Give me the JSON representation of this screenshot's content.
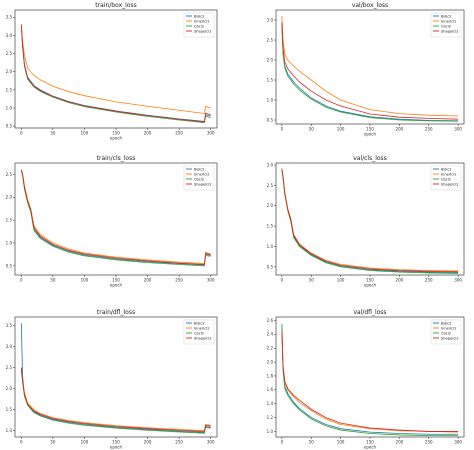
{
  "colors": {
    "Bisic2": "#1f77b4",
    "Innerlci2": "#ff7f0e",
    "Cbcl2": "#2ca02c",
    "Shapelci2": "#d62728"
  },
  "chart_data": [
    {
      "type": "line",
      "title": "train/box_loss",
      "xlabel": "epoch",
      "xlim": [
        -10,
        310
      ],
      "ylim": [
        0.45,
        3.7
      ],
      "xticks": [
        0,
        50,
        100,
        150,
        200,
        250,
        300
      ],
      "yticks": [
        0.5,
        1.0,
        1.5,
        2.0,
        2.5,
        3.0,
        3.5
      ],
      "ytick_labels": [
        "0.5",
        "1.0",
        "1.5",
        "2.0",
        "2.5",
        "3.0",
        "3.5"
      ],
      "legend": "top-right",
      "series": [
        {
          "name": "Bisic2",
          "x": [
            0,
            2,
            5,
            10,
            20,
            30,
            50,
            75,
            100,
            150,
            200,
            250,
            290,
            292,
            295,
            300
          ],
          "y": [
            3.3,
            2.7,
            2.2,
            1.85,
            1.62,
            1.5,
            1.33,
            1.18,
            1.07,
            0.92,
            0.8,
            0.7,
            0.63,
            0.82,
            0.8,
            0.78
          ]
        },
        {
          "name": "Innerlci2",
          "x": [
            0,
            2,
            5,
            10,
            20,
            30,
            50,
            75,
            100,
            150,
            200,
            250,
            290,
            292,
            295,
            300
          ],
          "y": [
            3.3,
            2.85,
            2.45,
            2.1,
            1.9,
            1.78,
            1.6,
            1.45,
            1.34,
            1.17,
            1.05,
            0.94,
            0.85,
            1.05,
            1.03,
            1.0
          ]
        },
        {
          "name": "Cbcl2",
          "x": [
            0,
            2,
            5,
            10,
            20,
            30,
            50,
            75,
            100,
            150,
            200,
            250,
            290,
            292,
            295,
            300
          ],
          "y": [
            3.3,
            2.7,
            2.15,
            1.8,
            1.58,
            1.46,
            1.3,
            1.15,
            1.04,
            0.89,
            0.77,
            0.67,
            0.6,
            0.78,
            0.76,
            0.74
          ]
        },
        {
          "name": "Shapelci2",
          "x": [
            0,
            2,
            5,
            10,
            20,
            30,
            50,
            75,
            100,
            150,
            200,
            250,
            290,
            292,
            295,
            300
          ],
          "y": [
            3.3,
            2.72,
            2.18,
            1.83,
            1.6,
            1.48,
            1.32,
            1.17,
            1.06,
            0.91,
            0.79,
            0.69,
            0.62,
            0.86,
            0.84,
            0.82
          ]
        }
      ]
    },
    {
      "type": "line",
      "title": "val/box_loss",
      "xlabel": "epoch",
      "xlim": [
        -10,
        310
      ],
      "ylim": [
        0.4,
        3.25
      ],
      "xticks": [
        0,
        50,
        100,
        150,
        200,
        250,
        300
      ],
      "yticks": [
        0.5,
        1.0,
        1.5,
        2.0,
        2.5,
        3.0
      ],
      "ytick_labels": [
        "0.5",
        "1.0",
        "1.5",
        "2.0",
        "2.5",
        "3.0"
      ],
      "legend": "top-right",
      "series": [
        {
          "name": "Bisic2",
          "x": [
            0,
            2,
            5,
            10,
            20,
            30,
            50,
            75,
            100,
            150,
            200,
            250,
            300
          ],
          "y": [
            2.9,
            2.2,
            1.85,
            1.65,
            1.45,
            1.3,
            1.05,
            0.85,
            0.72,
            0.58,
            0.52,
            0.49,
            0.48
          ]
        },
        {
          "name": "Innerlci2",
          "x": [
            0,
            2,
            5,
            10,
            20,
            30,
            50,
            75,
            100,
            150,
            200,
            250,
            300
          ],
          "y": [
            3.1,
            2.5,
            2.15,
            2.0,
            1.85,
            1.72,
            1.5,
            1.22,
            1.0,
            0.76,
            0.66,
            0.62,
            0.6
          ]
        },
        {
          "name": "Cbcl2",
          "x": [
            0,
            2,
            5,
            10,
            20,
            30,
            50,
            75,
            100,
            150,
            200,
            250,
            300
          ],
          "y": [
            2.85,
            2.15,
            1.8,
            1.6,
            1.4,
            1.25,
            1.02,
            0.82,
            0.7,
            0.56,
            0.5,
            0.48,
            0.47
          ]
        },
        {
          "name": "Shapelci2",
          "x": [
            0,
            2,
            5,
            10,
            20,
            30,
            50,
            75,
            100,
            150,
            200,
            250,
            300
          ],
          "y": [
            2.95,
            2.3,
            1.95,
            1.78,
            1.6,
            1.45,
            1.22,
            1.0,
            0.85,
            0.65,
            0.57,
            0.54,
            0.52
          ]
        }
      ]
    },
    {
      "type": "line",
      "title": "train/cls_loss",
      "xlabel": "epoch",
      "xlim": [
        -10,
        310
      ],
      "ylim": [
        0.3,
        2.75
      ],
      "xticks": [
        0,
        50,
        100,
        150,
        200,
        250,
        300
      ],
      "yticks": [
        0.5,
        1.0,
        1.5,
        2.0,
        2.5
      ],
      "ytick_labels": [
        "0.5",
        "1.0",
        "1.5",
        "2.0",
        "2.5"
      ],
      "legend": "top-right",
      "series": [
        {
          "name": "Bisic2",
          "x": [
            0,
            2,
            5,
            10,
            15,
            20,
            30,
            50,
            75,
            100,
            150,
            200,
            250,
            290,
            292,
            295,
            300
          ],
          "y": [
            2.6,
            2.5,
            2.2,
            1.9,
            1.7,
            1.3,
            1.12,
            0.95,
            0.82,
            0.74,
            0.65,
            0.59,
            0.55,
            0.52,
            0.76,
            0.75,
            0.73
          ]
        },
        {
          "name": "Innerlci2",
          "x": [
            0,
            2,
            5,
            10,
            15,
            20,
            30,
            50,
            75,
            100,
            150,
            200,
            250,
            290,
            292,
            295,
            300
          ],
          "y": [
            2.6,
            2.52,
            2.25,
            1.95,
            1.75,
            1.38,
            1.18,
            1.0,
            0.87,
            0.78,
            0.69,
            0.63,
            0.58,
            0.55,
            0.8,
            0.78,
            0.76
          ]
        },
        {
          "name": "Cbcl2",
          "x": [
            0,
            2,
            5,
            10,
            15,
            20,
            30,
            50,
            75,
            100,
            150,
            200,
            250,
            290,
            292,
            295,
            300
          ],
          "y": [
            2.6,
            2.48,
            2.18,
            1.88,
            1.68,
            1.28,
            1.1,
            0.93,
            0.8,
            0.72,
            0.63,
            0.57,
            0.53,
            0.5,
            0.74,
            0.72,
            0.71
          ]
        },
        {
          "name": "Shapelci2",
          "x": [
            0,
            2,
            5,
            10,
            15,
            20,
            30,
            50,
            75,
            100,
            150,
            200,
            250,
            290,
            292,
            295,
            300
          ],
          "y": [
            2.6,
            2.5,
            2.22,
            1.92,
            1.72,
            1.34,
            1.15,
            0.97,
            0.84,
            0.76,
            0.67,
            0.61,
            0.56,
            0.53,
            0.78,
            0.76,
            0.74
          ]
        }
      ]
    },
    {
      "type": "line",
      "title": "val/cls_loss",
      "xlabel": "epoch",
      "xlim": [
        -10,
        310
      ],
      "ylim": [
        0.3,
        3.05
      ],
      "xticks": [
        0,
        50,
        100,
        150,
        200,
        250,
        300
      ],
      "yticks": [
        0.5,
        1.0,
        1.5,
        2.0,
        2.5,
        3.0
      ],
      "ytick_labels": [
        "0.5",
        "1.0",
        "1.5",
        "2.0",
        "2.5",
        "3.0"
      ],
      "legend": "top-right",
      "series": [
        {
          "name": "Bisic2",
          "x": [
            0,
            2,
            5,
            10,
            15,
            20,
            30,
            50,
            75,
            100,
            150,
            200,
            250,
            300
          ],
          "y": [
            2.9,
            2.7,
            2.3,
            1.9,
            1.65,
            1.25,
            1.02,
            0.8,
            0.62,
            0.52,
            0.43,
            0.39,
            0.37,
            0.36
          ]
        },
        {
          "name": "Innerlci2",
          "x": [
            0,
            2,
            5,
            10,
            15,
            20,
            30,
            50,
            75,
            100,
            150,
            200,
            250,
            300
          ],
          "y": [
            2.92,
            2.72,
            2.33,
            1.93,
            1.7,
            1.3,
            1.06,
            0.84,
            0.66,
            0.56,
            0.47,
            0.43,
            0.41,
            0.4
          ]
        },
        {
          "name": "Cbcl2",
          "x": [
            0,
            2,
            5,
            10,
            15,
            20,
            30,
            50,
            75,
            100,
            150,
            200,
            250,
            300
          ],
          "y": [
            2.88,
            2.68,
            2.28,
            1.88,
            1.63,
            1.22,
            1.0,
            0.78,
            0.6,
            0.5,
            0.41,
            0.37,
            0.35,
            0.34
          ]
        },
        {
          "name": "Shapelci2",
          "x": [
            0,
            2,
            5,
            10,
            15,
            20,
            30,
            50,
            75,
            100,
            150,
            200,
            250,
            300
          ],
          "y": [
            2.9,
            2.71,
            2.31,
            1.91,
            1.68,
            1.28,
            1.04,
            0.82,
            0.64,
            0.54,
            0.45,
            0.41,
            0.39,
            0.38
          ]
        }
      ]
    },
    {
      "type": "line",
      "title": "train/dfl_loss",
      "xlabel": "epoch",
      "xlim": [
        -10,
        310
      ],
      "ylim": [
        0.85,
        3.7
      ],
      "xticks": [
        0,
        50,
        100,
        150,
        200,
        250,
        300
      ],
      "yticks": [
        1.0,
        1.5,
        2.0,
        2.5,
        3.0,
        3.5
      ],
      "ytick_labels": [
        "1.0",
        "1.5",
        "2.0",
        "2.5",
        "3.0",
        "3.5"
      ],
      "legend": "top-right",
      "series": [
        {
          "name": "Bisic2",
          "x": [
            0,
            2,
            5,
            10,
            20,
            30,
            50,
            75,
            100,
            150,
            200,
            250,
            290,
            292,
            295,
            300
          ],
          "y": [
            3.55,
            2.3,
            1.85,
            1.62,
            1.45,
            1.37,
            1.27,
            1.2,
            1.15,
            1.08,
            1.03,
            0.99,
            0.96,
            1.1,
            1.09,
            1.08
          ]
        },
        {
          "name": "Innerlci2",
          "x": [
            0,
            2,
            5,
            10,
            20,
            30,
            50,
            75,
            100,
            150,
            200,
            250,
            290,
            292,
            295,
            300
          ],
          "y": [
            2.5,
            2.2,
            1.9,
            1.66,
            1.5,
            1.41,
            1.31,
            1.24,
            1.19,
            1.12,
            1.07,
            1.03,
            1.0,
            1.15,
            1.14,
            1.13
          ]
        },
        {
          "name": "Cbcl2",
          "x": [
            0,
            2,
            5,
            10,
            20,
            30,
            50,
            75,
            100,
            150,
            200,
            250,
            290,
            292,
            295,
            300
          ],
          "y": [
            2.45,
            2.15,
            1.82,
            1.6,
            1.43,
            1.35,
            1.25,
            1.18,
            1.13,
            1.06,
            1.01,
            0.97,
            0.94,
            1.08,
            1.07,
            1.06
          ]
        },
        {
          "name": "Shapelci2",
          "x": [
            0,
            2,
            5,
            10,
            20,
            30,
            50,
            75,
            100,
            150,
            200,
            250,
            290,
            292,
            295,
            300
          ],
          "y": [
            2.5,
            2.18,
            1.86,
            1.63,
            1.47,
            1.39,
            1.29,
            1.22,
            1.17,
            1.1,
            1.05,
            1.01,
            0.98,
            1.13,
            1.12,
            1.11
          ]
        }
      ]
    },
    {
      "type": "line",
      "title": "val/dfl_loss",
      "xlabel": "epoch",
      "xlim": [
        -10,
        310
      ],
      "ylim": [
        0.92,
        2.65
      ],
      "xticks": [
        0,
        50,
        100,
        150,
        200,
        250,
        300
      ],
      "yticks": [
        1.0,
        1.2,
        1.4,
        1.6,
        1.8,
        2.0,
        2.2,
        2.4,
        2.6
      ],
      "ytick_labels": [
        "1.0",
        "1.2",
        "1.4",
        "1.6",
        "1.8",
        "2.0",
        "2.2",
        "2.4",
        "2.6"
      ],
      "legend": "top-right",
      "series": [
        {
          "name": "Bisic2",
          "x": [
            0,
            2,
            5,
            10,
            20,
            30,
            50,
            75,
            100,
            150,
            200,
            250,
            300
          ],
          "y": [
            2.55,
            1.9,
            1.65,
            1.55,
            1.42,
            1.33,
            1.2,
            1.1,
            1.04,
            0.99,
            0.97,
            0.96,
            0.96
          ]
        },
        {
          "name": "Innerlci2",
          "x": [
            0,
            2,
            5,
            10,
            20,
            30,
            50,
            75,
            100,
            150,
            200,
            250,
            300
          ],
          "y": [
            2.4,
            1.95,
            1.7,
            1.6,
            1.5,
            1.42,
            1.3,
            1.18,
            1.1,
            1.04,
            1.01,
            1.0,
            0.99
          ]
        },
        {
          "name": "Cbcl2",
          "x": [
            0,
            2,
            5,
            10,
            20,
            30,
            50,
            75,
            100,
            150,
            200,
            250,
            300
          ],
          "y": [
            2.5,
            1.88,
            1.62,
            1.52,
            1.4,
            1.31,
            1.18,
            1.08,
            1.02,
            0.97,
            0.95,
            0.94,
            0.94
          ]
        },
        {
          "name": "Shapelci2",
          "x": [
            0,
            2,
            5,
            10,
            20,
            30,
            50,
            75,
            100,
            150,
            200,
            250,
            300
          ],
          "y": [
            2.45,
            1.95,
            1.72,
            1.62,
            1.52,
            1.45,
            1.32,
            1.2,
            1.12,
            1.05,
            1.02,
            1.0,
            1.0
          ]
        }
      ]
    }
  ]
}
